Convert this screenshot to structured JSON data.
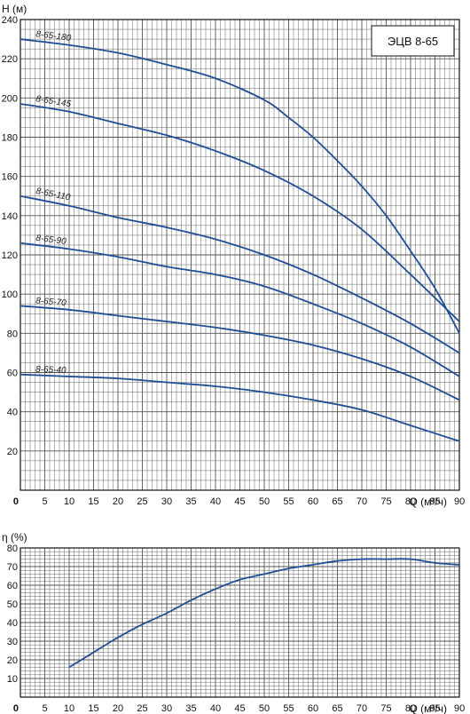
{
  "chart_data": [
    {
      "type": "line",
      "title": "ЭЦВ 8-65",
      "ylabel": "H (м)",
      "xlabel": "Q (м³/ч)",
      "xlim": [
        0,
        90
      ],
      "ylim": [
        0,
        240
      ],
      "grid": true,
      "x_ticks": [
        0,
        5,
        10,
        15,
        20,
        25,
        30,
        35,
        40,
        45,
        50,
        55,
        60,
        65,
        70,
        75,
        80,
        85,
        90
      ],
      "y_ticks": [
        20,
        40,
        60,
        80,
        100,
        120,
        140,
        160,
        180,
        200,
        220,
        240
      ],
      "series": [
        {
          "name": "8-65-180",
          "x": [
            0,
            10,
            20,
            30,
            40,
            50,
            55,
            60,
            65,
            70,
            75,
            80,
            85,
            90
          ],
          "y": [
            230,
            227,
            223,
            217,
            210,
            199,
            190,
            180,
            168,
            155,
            140,
            122,
            103,
            80
          ]
        },
        {
          "name": "8-65-145",
          "x": [
            0,
            10,
            20,
            30,
            40,
            50,
            60,
            70,
            80,
            90
          ],
          "y": [
            197,
            193,
            187,
            181,
            173,
            163,
            150,
            133,
            110,
            86
          ]
        },
        {
          "name": "8-65-110",
          "x": [
            0,
            10,
            20,
            30,
            40,
            50,
            60,
            70,
            80,
            90
          ],
          "y": [
            150,
            145,
            139,
            134,
            128,
            120,
            110,
            98,
            85,
            70
          ]
        },
        {
          "name": "8-65-90",
          "x": [
            0,
            10,
            20,
            30,
            40,
            50,
            60,
            70,
            80,
            90
          ],
          "y": [
            126,
            123,
            119,
            114,
            110,
            104,
            95,
            85,
            73,
            58
          ]
        },
        {
          "name": "8-65-70",
          "x": [
            0,
            10,
            20,
            30,
            40,
            50,
            60,
            70,
            80,
            90
          ],
          "y": [
            94,
            92,
            89,
            86,
            83,
            79,
            74,
            67,
            58,
            46
          ]
        },
        {
          "name": "8-65-40",
          "x": [
            0,
            10,
            20,
            30,
            40,
            50,
            60,
            70,
            80,
            90
          ],
          "y": [
            59,
            58,
            57,
            55,
            53,
            50,
            46,
            41,
            33,
            25
          ]
        }
      ]
    },
    {
      "type": "line",
      "title": "",
      "ylabel": "η (%)",
      "xlabel": "Q (м³/ч)",
      "xlim": [
        0,
        90
      ],
      "ylim": [
        0,
        80
      ],
      "grid": true,
      "x_ticks": [
        0,
        5,
        10,
        15,
        20,
        25,
        30,
        35,
        40,
        45,
        50,
        55,
        60,
        65,
        70,
        75,
        80,
        85,
        90
      ],
      "y_ticks": [
        10,
        20,
        30,
        40,
        50,
        60,
        70,
        80
      ],
      "series": [
        {
          "x": [
            10,
            15,
            20,
            25,
            30,
            35,
            40,
            45,
            50,
            55,
            60,
            65,
            70,
            75,
            80,
            85,
            90
          ],
          "y": [
            16,
            24,
            32,
            39,
            45,
            52,
            58,
            63,
            66,
            69,
            71,
            73,
            74,
            74,
            74,
            72,
            71
          ]
        }
      ]
    }
  ],
  "colors": {
    "curve": "#1f4e94",
    "grid": "#555555",
    "axis": "#111111"
  }
}
